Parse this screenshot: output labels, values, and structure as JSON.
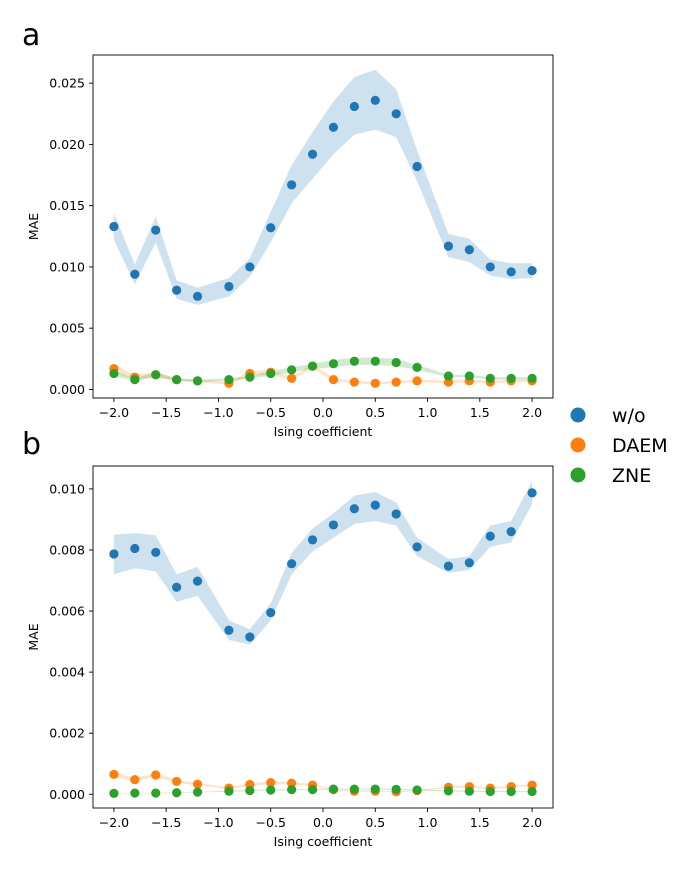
{
  "legend": {
    "items": [
      {
        "label": "w/o",
        "color": "#1f77b4"
      },
      {
        "label": "DAEM",
        "color": "#ff7f0e"
      },
      {
        "label": "ZNE",
        "color": "#2ca02c"
      }
    ]
  },
  "chart_data": [
    {
      "panel": "a",
      "type": "scatter",
      "xlabel": "Ising coefficient",
      "ylabel": "MAE",
      "xlim": [
        -2.2,
        2.2
      ],
      "ylim": [
        -0.0007,
        0.0273
      ],
      "xticks": [
        -2.0,
        -1.5,
        -1.0,
        -0.5,
        0.0,
        0.5,
        1.0,
        1.5,
        2.0
      ],
      "xtick_labels": [
        "−2.0",
        "−1.5",
        "−1.0",
        "−0.5",
        "0.0",
        "0.5",
        "1.0",
        "1.5",
        "2.0"
      ],
      "yticks": [
        0.0,
        0.005,
        0.01,
        0.015,
        0.02,
        0.025
      ],
      "ytick_labels": [
        "0.000",
        "0.005",
        "0.010",
        "0.015",
        "0.020",
        "0.025"
      ],
      "x": [
        -2.0,
        -1.8,
        -1.6,
        -1.4,
        -1.2,
        -0.9,
        -0.7,
        -0.5,
        -0.3,
        -0.1,
        0.1,
        0.3,
        0.5,
        0.7,
        0.9,
        1.2,
        1.4,
        1.6,
        1.8,
        2.0
      ],
      "series": [
        {
          "name": "w/o",
          "color": "#1f77b4",
          "values": [
            0.0133,
            0.0094,
            0.013,
            0.0081,
            0.0076,
            0.0084,
            0.01,
            0.0132,
            0.0167,
            0.0192,
            0.0214,
            0.0231,
            0.0236,
            0.0225,
            0.0182,
            0.0117,
            0.0114,
            0.01,
            0.0096,
            0.0097
          ],
          "band_lower": [
            0.0122,
            0.0086,
            0.012,
            0.0074,
            0.0069,
            0.0076,
            0.0092,
            0.012,
            0.0152,
            0.0172,
            0.0192,
            0.0208,
            0.0212,
            0.0206,
            0.017,
            0.0108,
            0.0104,
            0.0093,
            0.009,
            0.0091
          ],
          "band_upper": [
            0.0144,
            0.0102,
            0.0141,
            0.0089,
            0.0083,
            0.0091,
            0.0107,
            0.0145,
            0.0183,
            0.021,
            0.0235,
            0.0255,
            0.0261,
            0.0245,
            0.0195,
            0.0127,
            0.0123,
            0.0106,
            0.0103,
            0.0103
          ]
        },
        {
          "name": "DAEM",
          "color": "#ff7f0e",
          "values": [
            0.0017,
            0.001,
            0.0012,
            0.0008,
            0.0007,
            0.0005,
            0.0013,
            0.0014,
            0.0009,
            0.0019,
            0.0008,
            0.0006,
            0.0005,
            0.0006,
            0.0007,
            0.0006,
            0.0007,
            0.0006,
            0.0007,
            0.0007
          ],
          "band_lower": [
            0.0014,
            0.0008,
            0.001,
            0.0007,
            0.0006,
            0.0004,
            0.0011,
            0.0012,
            0.0008,
            0.0017,
            0.0007,
            0.0005,
            0.0004,
            0.0005,
            0.0006,
            0.0005,
            0.0006,
            0.0005,
            0.0006,
            0.0006
          ],
          "band_upper": [
            0.002,
            0.0012,
            0.0014,
            0.0009,
            0.0008,
            0.0006,
            0.0015,
            0.0016,
            0.001,
            0.0021,
            0.0009,
            0.0007,
            0.0006,
            0.0007,
            0.0008,
            0.0007,
            0.0008,
            0.0007,
            0.0008,
            0.0008
          ]
        },
        {
          "name": "ZNE",
          "color": "#2ca02c",
          "values": [
            0.0013,
            0.0008,
            0.0012,
            0.0008,
            0.0007,
            0.0008,
            0.001,
            0.0013,
            0.0016,
            0.0019,
            0.0021,
            0.0023,
            0.0023,
            0.0022,
            0.0018,
            0.0011,
            0.0011,
            0.0009,
            0.0009,
            0.0009
          ],
          "band_lower": [
            0.0011,
            0.0007,
            0.001,
            0.0007,
            0.0006,
            0.0007,
            0.0009,
            0.0011,
            0.0014,
            0.0017,
            0.0018,
            0.002,
            0.002,
            0.0019,
            0.0016,
            0.001,
            0.001,
            0.0008,
            0.0008,
            0.0008
          ],
          "band_upper": [
            0.0015,
            0.0009,
            0.0014,
            0.0009,
            0.0008,
            0.0009,
            0.0011,
            0.0015,
            0.0018,
            0.0021,
            0.0024,
            0.0026,
            0.0026,
            0.0025,
            0.002,
            0.0012,
            0.0012,
            0.001,
            0.001,
            0.001
          ]
        }
      ]
    },
    {
      "panel": "b",
      "type": "scatter",
      "xlabel": "Ising coefficient",
      "ylabel": "MAE",
      "xlim": [
        -2.2,
        2.2
      ],
      "ylim": [
        -0.00045,
        0.01075
      ],
      "xticks": [
        -2.0,
        -1.5,
        -1.0,
        -0.5,
        0.0,
        0.5,
        1.0,
        1.5,
        2.0
      ],
      "xtick_labels": [
        "−2.0",
        "−1.5",
        "−1.0",
        "−0.5",
        "0.0",
        "0.5",
        "1.0",
        "1.5",
        "2.0"
      ],
      "yticks": [
        0.0,
        0.002,
        0.004,
        0.006,
        0.008,
        0.01
      ],
      "ytick_labels": [
        "0.000",
        "0.002",
        "0.004",
        "0.006",
        "0.008",
        "0.010"
      ],
      "x": [
        -2.0,
        -1.8,
        -1.6,
        -1.4,
        -1.2,
        -0.9,
        -0.7,
        -0.5,
        -0.3,
        -0.1,
        0.1,
        0.3,
        0.5,
        0.7,
        0.9,
        1.2,
        1.4,
        1.6,
        1.8,
        2.0
      ],
      "series": [
        {
          "name": "w/o",
          "color": "#1f77b4",
          "values": [
            0.00787,
            0.00805,
            0.00792,
            0.00678,
            0.00698,
            0.00537,
            0.00515,
            0.00595,
            0.00755,
            0.00833,
            0.00882,
            0.00935,
            0.00947,
            0.00918,
            0.0081,
            0.00747,
            0.00758,
            0.00845,
            0.0086,
            0.00987
          ],
          "band_lower": [
            0.0072,
            0.0074,
            0.0073,
            0.0063,
            0.0065,
            0.00505,
            0.0049,
            0.0057,
            0.0072,
            0.00795,
            0.0084,
            0.00885,
            0.00895,
            0.0088,
            0.0078,
            0.00725,
            0.00735,
            0.0081,
            0.00825,
            0.0095
          ],
          "band_upper": [
            0.0085,
            0.00855,
            0.00848,
            0.0072,
            0.00745,
            0.0057,
            0.0054,
            0.00625,
            0.0079,
            0.0087,
            0.0092,
            0.00978,
            0.0099,
            0.00955,
            0.0084,
            0.0077,
            0.0078,
            0.0088,
            0.00895,
            0.01025
          ]
        },
        {
          "name": "DAEM",
          "color": "#ff7f0e",
          "values": [
            0.00065,
            0.00048,
            0.00063,
            0.00042,
            0.00033,
            0.0002,
            0.00032,
            0.00038,
            0.00036,
            0.0003,
            0.00015,
            0.0001,
            0.0001,
            8e-05,
            0.00012,
            0.00023,
            0.00025,
            0.0002,
            0.00025,
            0.0003
          ],
          "band_lower": [
            0.00058,
            0.00042,
            0.00057,
            0.00037,
            0.00029,
            0.00017,
            0.00028,
            0.00034,
            0.00032,
            0.00027,
            0.00013,
            8e-05,
            8e-05,
            6e-05,
            0.0001,
            0.0002,
            0.00022,
            0.00017,
            0.00022,
            0.00027
          ],
          "band_upper": [
            0.00072,
            0.00054,
            0.00069,
            0.00047,
            0.00037,
            0.00023,
            0.00036,
            0.00042,
            0.0004,
            0.00033,
            0.00017,
            0.00012,
            0.00012,
            0.0001,
            0.00014,
            0.00026,
            0.00028,
            0.00023,
            0.00028,
            0.00033
          ]
        },
        {
          "name": "ZNE",
          "color": "#2ca02c",
          "values": [
            3e-05,
            4e-05,
            4e-05,
            5e-05,
            7e-05,
            0.0001,
            0.00012,
            0.00014,
            0.00015,
            0.00015,
            0.00017,
            0.00017,
            0.00017,
            0.00016,
            0.00014,
            0.00011,
            0.0001,
            9e-05,
            9e-05,
            9e-05
          ],
          "band_lower": [
            2e-05,
            3e-05,
            3e-05,
            4e-05,
            6e-05,
            8e-05,
            0.0001,
            0.00012,
            0.00013,
            0.00013,
            0.00015,
            0.00015,
            0.00015,
            0.00014,
            0.00012,
            9e-05,
            8e-05,
            7e-05,
            7e-05,
            7e-05
          ],
          "band_upper": [
            4e-05,
            5e-05,
            5e-05,
            6e-05,
            8e-05,
            0.00012,
            0.00014,
            0.00016,
            0.00017,
            0.00017,
            0.00019,
            0.00019,
            0.00019,
            0.00018,
            0.00016,
            0.00013,
            0.00012,
            0.00011,
            0.00011,
            0.00011
          ]
        }
      ]
    }
  ]
}
